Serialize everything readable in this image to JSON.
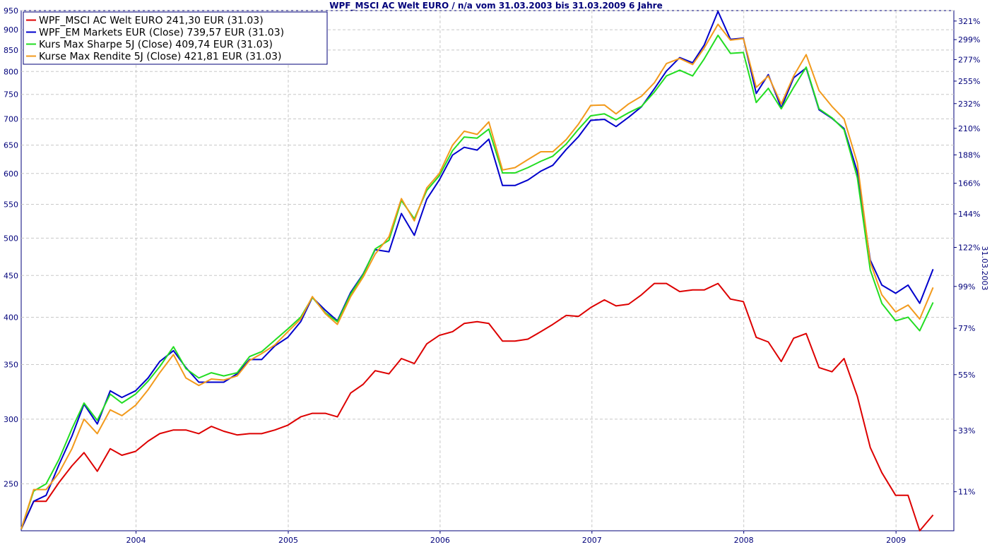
{
  "chart_data": {
    "type": "line",
    "title": "WPF_MSCI AC Welt EURO / n/a vom 31.03.2003 bis 31.03.2009 6 Jahre",
    "right_axis_label": "31.03.2003",
    "y_scale": "log",
    "ylim": [
      219,
      950
    ],
    "y_ticks": [
      250,
      300,
      350,
      400,
      450,
      500,
      550,
      600,
      650,
      700,
      750,
      800,
      850,
      900,
      950
    ],
    "y_tick_labels": [
      "250",
      "300",
      "350",
      "400",
      "450",
      "500",
      "550",
      "600",
      "650",
      "700",
      "750",
      "800",
      "850",
      "900",
      "950"
    ],
    "right_ticks": [
      {
        "value": 244.5,
        "label": "11%"
      },
      {
        "value": 290.6,
        "label": "33%"
      },
      {
        "value": 340.2,
        "label": "55%"
      },
      {
        "value": 387.7,
        "label": "77%"
      },
      {
        "value": 436.3,
        "label": "99%"
      },
      {
        "value": 487.1,
        "label": "122%"
      },
      {
        "value": 535.4,
        "label": "144%"
      },
      {
        "value": 583.7,
        "label": "166%"
      },
      {
        "value": 632.3,
        "label": "188%"
      },
      {
        "value": 681.5,
        "label": "210%"
      },
      {
        "value": 730.8,
        "label": "232%"
      },
      {
        "value": 778.6,
        "label": "255%"
      },
      {
        "value": 827.4,
        "label": "277%"
      },
      {
        "value": 875.3,
        "label": "299%"
      },
      {
        "value": 922.4,
        "label": "321%"
      }
    ],
    "x_range": [
      "2003-03-31",
      "2009-05-20"
    ],
    "x_ticks": [
      "2004-01-01",
      "2005-01-01",
      "2006-01-01",
      "2007-01-01",
      "2008-01-01",
      "2009-01-01"
    ],
    "x_tick_labels": [
      "2004",
      "2005",
      "2006",
      "2007",
      "2008",
      "2009"
    ],
    "grid": true,
    "legend_position": "top-left",
    "x": [
      "2003-03-31",
      "2003-04-30",
      "2003-05-30",
      "2003-06-30",
      "2003-07-31",
      "2003-08-29",
      "2003-09-30",
      "2003-10-31",
      "2003-11-28",
      "2003-12-31",
      "2004-01-30",
      "2004-02-27",
      "2004-03-31",
      "2004-04-30",
      "2004-05-31",
      "2004-06-30",
      "2004-07-30",
      "2004-08-31",
      "2004-09-30",
      "2004-10-29",
      "2004-11-30",
      "2004-12-31",
      "2005-01-31",
      "2005-02-28",
      "2005-03-31",
      "2005-04-29",
      "2005-05-31",
      "2005-06-30",
      "2005-07-29",
      "2005-08-31",
      "2005-09-30",
      "2005-10-31",
      "2005-11-30",
      "2005-12-30",
      "2006-01-31",
      "2006-02-28",
      "2006-03-31",
      "2006-04-28",
      "2006-05-31",
      "2006-06-30",
      "2006-07-31",
      "2006-08-31",
      "2006-09-29",
      "2006-10-31",
      "2006-11-30",
      "2006-12-29",
      "2007-01-31",
      "2007-02-28",
      "2007-03-30",
      "2007-04-30",
      "2007-05-31",
      "2007-06-29",
      "2007-07-31",
      "2007-08-31",
      "2007-09-28",
      "2007-10-31",
      "2007-11-30",
      "2007-12-31",
      "2008-01-31",
      "2008-02-29",
      "2008-03-31",
      "2008-04-30",
      "2008-05-30",
      "2008-06-30",
      "2008-07-31",
      "2008-08-29",
      "2008-09-30",
      "2008-10-31",
      "2008-11-28",
      "2008-12-31",
      "2009-01-30",
      "2009-02-27",
      "2009-03-31"
    ],
    "series": [
      {
        "name": "WPF_MSCI AC Welt EURO 241,30 EUR (31.03)",
        "color": "#dd0000",
        "values": [
          220,
          238,
          238,
          251,
          263,
          273,
          259,
          276,
          271,
          274,
          282,
          288,
          291,
          291,
          288,
          294,
          290,
          287,
          288,
          288,
          291,
          295,
          302,
          305,
          305,
          302,
          323,
          331,
          344,
          341,
          356,
          351,
          371,
          380,
          384,
          393,
          395,
          393,
          374,
          374,
          376,
          384,
          392,
          402,
          401,
          411,
          420,
          413,
          415,
          426,
          440,
          440,
          430,
          432,
          432,
          440,
          421,
          418,
          378,
          373,
          353,
          377,
          382,
          347,
          343,
          356,
          320,
          277,
          258,
          242,
          242,
          219,
          229
        ]
      },
      {
        "name": "WPF_EM Markets EUR (Close) 739,57 EUR (31.03)",
        "color": "#0000cc",
        "values": [
          220,
          238,
          242,
          264,
          286,
          313,
          296,
          325,
          319,
          325,
          337,
          353,
          364,
          347,
          333,
          333,
          333,
          341,
          355,
          355,
          369,
          378,
          395,
          423,
          408,
          396,
          429,
          452,
          484,
          481,
          536,
          504,
          558,
          589,
          632,
          646,
          641,
          661,
          580,
          580,
          589,
          604,
          614,
          642,
          666,
          697,
          699,
          685,
          703,
          724,
          762,
          801,
          832,
          820,
          862,
          948,
          876,
          879,
          752,
          793,
          722,
          786,
          808,
          718,
          701,
          681,
          603,
          470,
          438,
          428,
          438,
          416,
          458
        ]
      },
      {
        "name": "Kurs Max Sharpe 5J (Close) 409,74 EUR (31.03)",
        "color": "#22dd22",
        "values": [
          220,
          245,
          250,
          268,
          292,
          314,
          299,
          322,
          314,
          322,
          334,
          348,
          368,
          346,
          337,
          342,
          339,
          342,
          358,
          363,
          375,
          387,
          400,
          423,
          405,
          395,
          427,
          451,
          485,
          497,
          556,
          528,
          572,
          596,
          640,
          665,
          663,
          680,
          601,
          601,
          610,
          621,
          630,
          652,
          680,
          706,
          710,
          698,
          712,
          725,
          755,
          790,
          803,
          790,
          829,
          886,
          842,
          844,
          733,
          763,
          720,
          765,
          810,
          720,
          702,
          679,
          593,
          457,
          416,
          396,
          400,
          385,
          417
        ]
      },
      {
        "name": "Kurse Max Rendite 5J (Close) 421,81 EUR (31.03)",
        "color": "#f29a1c",
        "values": [
          220,
          246,
          246,
          258,
          276,
          300,
          288,
          308,
          303,
          312,
          326,
          342,
          360,
          337,
          330,
          336,
          335,
          339,
          354,
          361,
          370,
          384,
          398,
          424,
          404,
          392,
          424,
          448,
          478,
          502,
          559,
          525,
          576,
          600,
          650,
          676,
          670,
          694,
          606,
          610,
          624,
          638,
          638,
          660,
          690,
          727,
          728,
          710,
          730,
          746,
          775,
          818,
          830,
          816,
          855,
          914,
          874,
          878,
          765,
          790,
          730,
          790,
          839,
          758,
          725,
          700,
          618,
          467,
          426,
          406,
          414,
          398,
          435
        ]
      }
    ]
  }
}
